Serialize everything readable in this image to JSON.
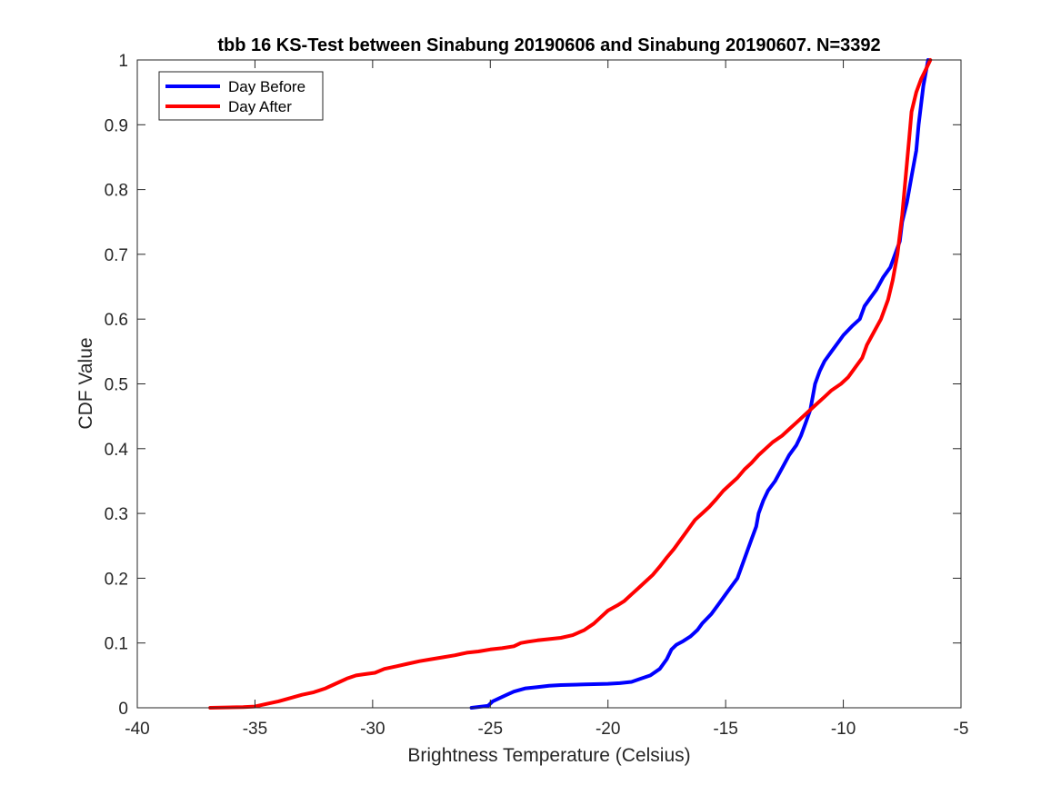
{
  "chart_data": {
    "type": "line",
    "title": "tbb 16 KS-Test between Sinabung 20190606 and Sinabung 20190607. N=3392",
    "xlabel": "Brightness Temperature (Celsius)",
    "ylabel": "CDF Value",
    "xlim": [
      -40,
      -5
    ],
    "ylim": [
      0,
      1
    ],
    "xticks": [
      -40,
      -35,
      -30,
      -25,
      -20,
      -15,
      -10,
      -5
    ],
    "yticks": [
      0,
      0.1,
      0.2,
      0.3,
      0.4,
      0.5,
      0.6,
      0.7,
      0.8,
      0.9,
      1
    ],
    "xtick_labels": [
      "-40",
      "-35",
      "-30",
      "-25",
      "-20",
      "-15",
      "-10",
      "-5"
    ],
    "ytick_labels": [
      "0",
      "0.1",
      "0.2",
      "0.3",
      "0.4",
      "0.5",
      "0.6",
      "0.7",
      "0.8",
      "0.9",
      "1"
    ],
    "grid": false,
    "legend_position": "top-left",
    "series": [
      {
        "name": "Day Before",
        "color": "#0000ff",
        "points": [
          [
            -25.8,
            0.0
          ],
          [
            -25.1,
            0.003
          ],
          [
            -24.9,
            0.01
          ],
          [
            -24.6,
            0.015
          ],
          [
            -24.3,
            0.02
          ],
          [
            -24.0,
            0.025
          ],
          [
            -23.5,
            0.03
          ],
          [
            -23.0,
            0.032
          ],
          [
            -22.5,
            0.034
          ],
          [
            -22.0,
            0.035
          ],
          [
            -21.0,
            0.036
          ],
          [
            -20.0,
            0.037
          ],
          [
            -19.5,
            0.038
          ],
          [
            -19.0,
            0.04
          ],
          [
            -18.6,
            0.045
          ],
          [
            -18.2,
            0.05
          ],
          [
            -17.8,
            0.06
          ],
          [
            -17.5,
            0.075
          ],
          [
            -17.3,
            0.09
          ],
          [
            -17.1,
            0.097
          ],
          [
            -16.8,
            0.103
          ],
          [
            -16.5,
            0.11
          ],
          [
            -16.2,
            0.12
          ],
          [
            -16.0,
            0.13
          ],
          [
            -15.6,
            0.145
          ],
          [
            -15.3,
            0.16
          ],
          [
            -15.0,
            0.175
          ],
          [
            -14.7,
            0.19
          ],
          [
            -14.5,
            0.2
          ],
          [
            -14.3,
            0.22
          ],
          [
            -14.1,
            0.24
          ],
          [
            -13.9,
            0.26
          ],
          [
            -13.7,
            0.28
          ],
          [
            -13.6,
            0.3
          ],
          [
            -13.4,
            0.32
          ],
          [
            -13.2,
            0.335
          ],
          [
            -12.9,
            0.35
          ],
          [
            -12.6,
            0.37
          ],
          [
            -12.3,
            0.39
          ],
          [
            -12.0,
            0.405
          ],
          [
            -11.8,
            0.42
          ],
          [
            -11.6,
            0.44
          ],
          [
            -11.4,
            0.46
          ],
          [
            -11.3,
            0.48
          ],
          [
            -11.2,
            0.5
          ],
          [
            -11.0,
            0.52
          ],
          [
            -10.8,
            0.535
          ],
          [
            -10.5,
            0.55
          ],
          [
            -10.2,
            0.565
          ],
          [
            -10.0,
            0.575
          ],
          [
            -9.6,
            0.59
          ],
          [
            -9.3,
            0.6
          ],
          [
            -9.1,
            0.62
          ],
          [
            -8.9,
            0.63
          ],
          [
            -8.6,
            0.645
          ],
          [
            -8.3,
            0.665
          ],
          [
            -8.0,
            0.68
          ],
          [
            -7.8,
            0.7
          ],
          [
            -7.6,
            0.72
          ],
          [
            -7.5,
            0.75
          ],
          [
            -7.3,
            0.78
          ],
          [
            -7.1,
            0.82
          ],
          [
            -6.9,
            0.86
          ],
          [
            -6.8,
            0.9
          ],
          [
            -6.7,
            0.93
          ],
          [
            -6.6,
            0.96
          ],
          [
            -6.5,
            0.98
          ],
          [
            -6.4,
            1.0
          ]
        ]
      },
      {
        "name": "Day After",
        "color": "#ff0000",
        "points": [
          [
            -36.9,
            0.0
          ],
          [
            -35.5,
            0.001
          ],
          [
            -35.0,
            0.002
          ],
          [
            -34.5,
            0.006
          ],
          [
            -34.0,
            0.01
          ],
          [
            -33.5,
            0.015
          ],
          [
            -33.0,
            0.02
          ],
          [
            -32.5,
            0.024
          ],
          [
            -32.0,
            0.03
          ],
          [
            -31.7,
            0.035
          ],
          [
            -31.4,
            0.04
          ],
          [
            -31.1,
            0.045
          ],
          [
            -30.7,
            0.05
          ],
          [
            -30.3,
            0.052
          ],
          [
            -29.9,
            0.054
          ],
          [
            -29.5,
            0.06
          ],
          [
            -29.0,
            0.064
          ],
          [
            -28.5,
            0.068
          ],
          [
            -28.0,
            0.072
          ],
          [
            -27.5,
            0.075
          ],
          [
            -27.0,
            0.078
          ],
          [
            -26.5,
            0.081
          ],
          [
            -26.0,
            0.085
          ],
          [
            -25.5,
            0.087
          ],
          [
            -25.0,
            0.09
          ],
          [
            -24.5,
            0.092
          ],
          [
            -24.0,
            0.095
          ],
          [
            -23.7,
            0.1
          ],
          [
            -23.4,
            0.102
          ],
          [
            -23.0,
            0.104
          ],
          [
            -22.5,
            0.106
          ],
          [
            -22.0,
            0.108
          ],
          [
            -21.5,
            0.112
          ],
          [
            -21.0,
            0.12
          ],
          [
            -20.6,
            0.13
          ],
          [
            -20.3,
            0.14
          ],
          [
            -20.0,
            0.15
          ],
          [
            -19.6,
            0.158
          ],
          [
            -19.3,
            0.165
          ],
          [
            -19.0,
            0.175
          ],
          [
            -18.7,
            0.185
          ],
          [
            -18.4,
            0.195
          ],
          [
            -18.1,
            0.205
          ],
          [
            -17.8,
            0.218
          ],
          [
            -17.5,
            0.232
          ],
          [
            -17.2,
            0.245
          ],
          [
            -16.9,
            0.26
          ],
          [
            -16.6,
            0.275
          ],
          [
            -16.3,
            0.29
          ],
          [
            -16.0,
            0.3
          ],
          [
            -15.7,
            0.31
          ],
          [
            -15.4,
            0.322
          ],
          [
            -15.1,
            0.335
          ],
          [
            -14.8,
            0.345
          ],
          [
            -14.5,
            0.355
          ],
          [
            -14.2,
            0.368
          ],
          [
            -13.9,
            0.378
          ],
          [
            -13.6,
            0.39
          ],
          [
            -13.3,
            0.4
          ],
          [
            -13.0,
            0.41
          ],
          [
            -12.6,
            0.42
          ],
          [
            -12.3,
            0.43
          ],
          [
            -12.0,
            0.44
          ],
          [
            -11.7,
            0.45
          ],
          [
            -11.4,
            0.46
          ],
          [
            -11.1,
            0.47
          ],
          [
            -10.8,
            0.48
          ],
          [
            -10.5,
            0.49
          ],
          [
            -10.1,
            0.5
          ],
          [
            -9.8,
            0.51
          ],
          [
            -9.5,
            0.525
          ],
          [
            -9.2,
            0.54
          ],
          [
            -9.0,
            0.56
          ],
          [
            -8.7,
            0.58
          ],
          [
            -8.4,
            0.6
          ],
          [
            -8.1,
            0.63
          ],
          [
            -7.9,
            0.66
          ],
          [
            -7.7,
            0.7
          ],
          [
            -7.5,
            0.76
          ],
          [
            -7.4,
            0.8
          ],
          [
            -7.3,
            0.84
          ],
          [
            -7.2,
            0.88
          ],
          [
            -7.1,
            0.92
          ],
          [
            -6.9,
            0.95
          ],
          [
            -6.7,
            0.97
          ],
          [
            -6.5,
            0.985
          ],
          [
            -6.3,
            1.0
          ]
        ]
      }
    ]
  }
}
